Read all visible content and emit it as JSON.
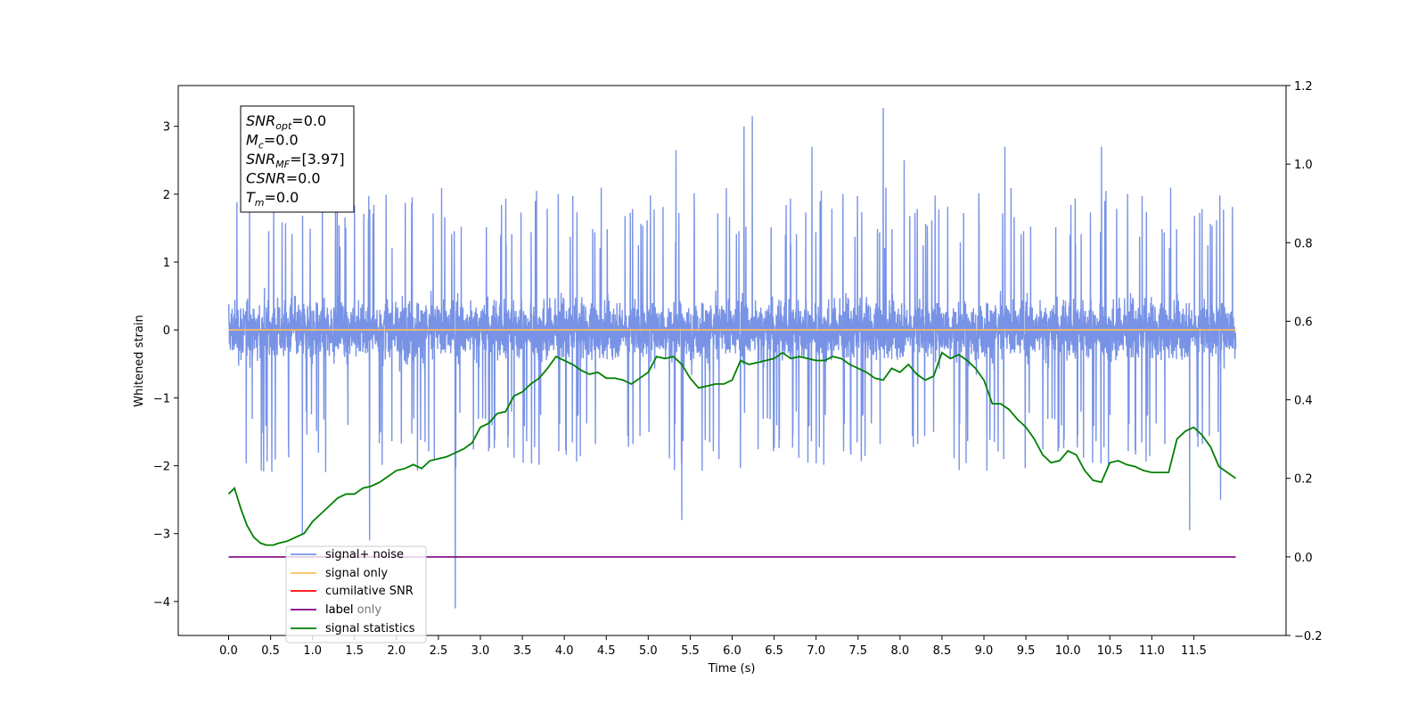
{
  "chart_data": {
    "type": "line",
    "xlabel": "Time (s)",
    "ylabel": "Whitened strain",
    "xlim": [
      -0.6,
      12.6
    ],
    "ylim": [
      -4.5,
      3.6
    ],
    "y2lim": [
      -0.2,
      1.2
    ],
    "x_ticks": [
      "0.0",
      "0.5",
      "1.0",
      "1.5",
      "2.0",
      "2.5",
      "3.0",
      "3.5",
      "4.0",
      "4.5",
      "5.0",
      "5.5",
      "6.0",
      "6.5",
      "7.0",
      "7.5",
      "8.0",
      "8.5",
      "9.0",
      "9.5",
      "10.0",
      "10.5",
      "11.0",
      "11.5"
    ],
    "y_ticks": [
      "3",
      "2",
      "1",
      "0",
      "−1",
      "−2",
      "−3",
      "−4"
    ],
    "y2_ticks": [
      "1.2",
      "1.0",
      "0.8",
      "0.6",
      "0.4",
      "0.2",
      "0.0",
      "−0.2"
    ],
    "grid": false,
    "legend_position": "lower-left",
    "colors": {
      "signal_noise": "#7893e6",
      "signal_only": "#ffbe5a",
      "cumulative_snr": "#ff0000",
      "label": "#800080",
      "label_only": "#000000",
      "signal_statistics": "#008000"
    },
    "annotation": [
      {
        "var": "SNR",
        "sub": "opt",
        "value": "=0.0"
      },
      {
        "var": "M",
        "sub": "c",
        "value": "=0.0"
      },
      {
        "var": "SNR",
        "sub": "MF",
        "value": "=[3.97]"
      },
      {
        "var": "CSNR",
        "sub": "",
        "value": "=0.0"
      },
      {
        "var": "T",
        "sub": "m",
        "value": "=0.0"
      }
    ],
    "series": [
      {
        "name": "signal+ noise",
        "axis": "left",
        "kind": "noise",
        "x_start": 0.0,
        "x_end": 12.0,
        "baseline": 0.0,
        "spread": 0.55,
        "upper_envelope_typical": 2.0,
        "lower_envelope_typical": -2.2,
        "notable_peaks": [
          {
            "x": 0.1,
            "y": 1.88
          },
          {
            "x": 0.88,
            "y": -3.0
          },
          {
            "x": 1.68,
            "y": -3.1
          },
          {
            "x": 2.7,
            "y": -4.1
          },
          {
            "x": 5.33,
            "y": 2.65
          },
          {
            "x": 5.4,
            "y": -2.8
          },
          {
            "x": 6.14,
            "y": 3.0
          },
          {
            "x": 6.24,
            "y": 3.15
          },
          {
            "x": 6.95,
            "y": 2.7
          },
          {
            "x": 7.8,
            "y": 3.27
          },
          {
            "x": 8.05,
            "y": 2.5
          },
          {
            "x": 9.25,
            "y": 2.7
          },
          {
            "x": 10.4,
            "y": 2.7
          },
          {
            "x": 11.45,
            "y": -2.95
          },
          {
            "x": 11.82,
            "y": -2.5
          }
        ]
      },
      {
        "name": "signal only",
        "axis": "left",
        "x": [
          0.0,
          12.0
        ],
        "y": [
          0.0,
          0.0
        ]
      },
      {
        "name": "cumilative SNR",
        "axis": "right",
        "x": [],
        "y": []
      },
      {
        "name": "label",
        "axis": "right",
        "x": [
          0.0,
          12.0
        ],
        "y": [
          0.0,
          0.0
        ]
      },
      {
        "name": "label only",
        "axis": "right",
        "x": [],
        "y": []
      },
      {
        "name": "signal statistics",
        "axis": "right",
        "x": [
          0.0,
          0.07,
          0.15,
          0.22,
          0.3,
          0.38,
          0.45,
          0.53,
          0.6,
          0.7,
          0.8,
          0.9,
          1.0,
          1.2,
          1.3,
          1.4,
          1.5,
          1.6,
          1.7,
          1.8,
          1.9,
          2.0,
          2.1,
          2.2,
          2.3,
          2.4,
          2.5,
          2.6,
          2.7,
          2.8,
          2.9,
          3.0,
          3.1,
          3.2,
          3.3,
          3.4,
          3.5,
          3.6,
          3.7,
          3.8,
          3.9,
          4.0,
          4.1,
          4.2,
          4.3,
          4.4,
          4.5,
          4.6,
          4.7,
          4.8,
          4.9,
          5.0,
          5.1,
          5.2,
          5.3,
          5.4,
          5.5,
          5.6,
          5.7,
          5.8,
          5.9,
          6.0,
          6.1,
          6.2,
          6.3,
          6.4,
          6.5,
          6.6,
          6.7,
          6.8,
          6.9,
          7.0,
          7.1,
          7.2,
          7.3,
          7.4,
          7.5,
          7.6,
          7.7,
          7.8,
          7.9,
          8.0,
          8.1,
          8.2,
          8.3,
          8.4,
          8.5,
          8.6,
          8.7,
          8.8,
          8.9,
          9.0,
          9.1,
          9.2,
          9.3,
          9.4,
          9.5,
          9.6,
          9.7,
          9.8,
          9.9,
          10.0,
          10.1,
          10.2,
          10.3,
          10.4,
          10.5,
          10.6,
          10.7,
          10.8,
          10.9,
          11.0,
          11.1,
          11.2,
          11.3,
          11.4,
          11.5,
          11.6,
          11.7,
          11.8,
          11.9,
          12.0
        ],
        "y": [
          0.16,
          0.175,
          0.12,
          0.08,
          0.05,
          0.035,
          0.03,
          0.03,
          0.035,
          0.04,
          0.05,
          0.06,
          0.09,
          0.13,
          0.15,
          0.16,
          0.16,
          0.175,
          0.18,
          0.19,
          0.205,
          0.22,
          0.225,
          0.235,
          0.225,
          0.245,
          0.25,
          0.255,
          0.265,
          0.275,
          0.29,
          0.33,
          0.34,
          0.365,
          0.37,
          0.41,
          0.42,
          0.44,
          0.455,
          0.48,
          0.51,
          0.5,
          0.49,
          0.475,
          0.465,
          0.47,
          0.455,
          0.455,
          0.45,
          0.44,
          0.455,
          0.47,
          0.51,
          0.505,
          0.51,
          0.49,
          0.455,
          0.43,
          0.435,
          0.44,
          0.44,
          0.45,
          0.5,
          0.49,
          0.495,
          0.5,
          0.505,
          0.52,
          0.505,
          0.51,
          0.505,
          0.5,
          0.5,
          0.51,
          0.505,
          0.49,
          0.48,
          0.47,
          0.455,
          0.45,
          0.48,
          0.47,
          0.49,
          0.465,
          0.45,
          0.46,
          0.52,
          0.505,
          0.515,
          0.5,
          0.48,
          0.45,
          0.39,
          0.39,
          0.375,
          0.35,
          0.33,
          0.3,
          0.26,
          0.24,
          0.245,
          0.27,
          0.26,
          0.22,
          0.195,
          0.19,
          0.24,
          0.245,
          0.235,
          0.23,
          0.22,
          0.215,
          0.215,
          0.215,
          0.3,
          0.32,
          0.33,
          0.31,
          0.28,
          0.23,
          0.215,
          0.2
        ]
      }
    ]
  }
}
